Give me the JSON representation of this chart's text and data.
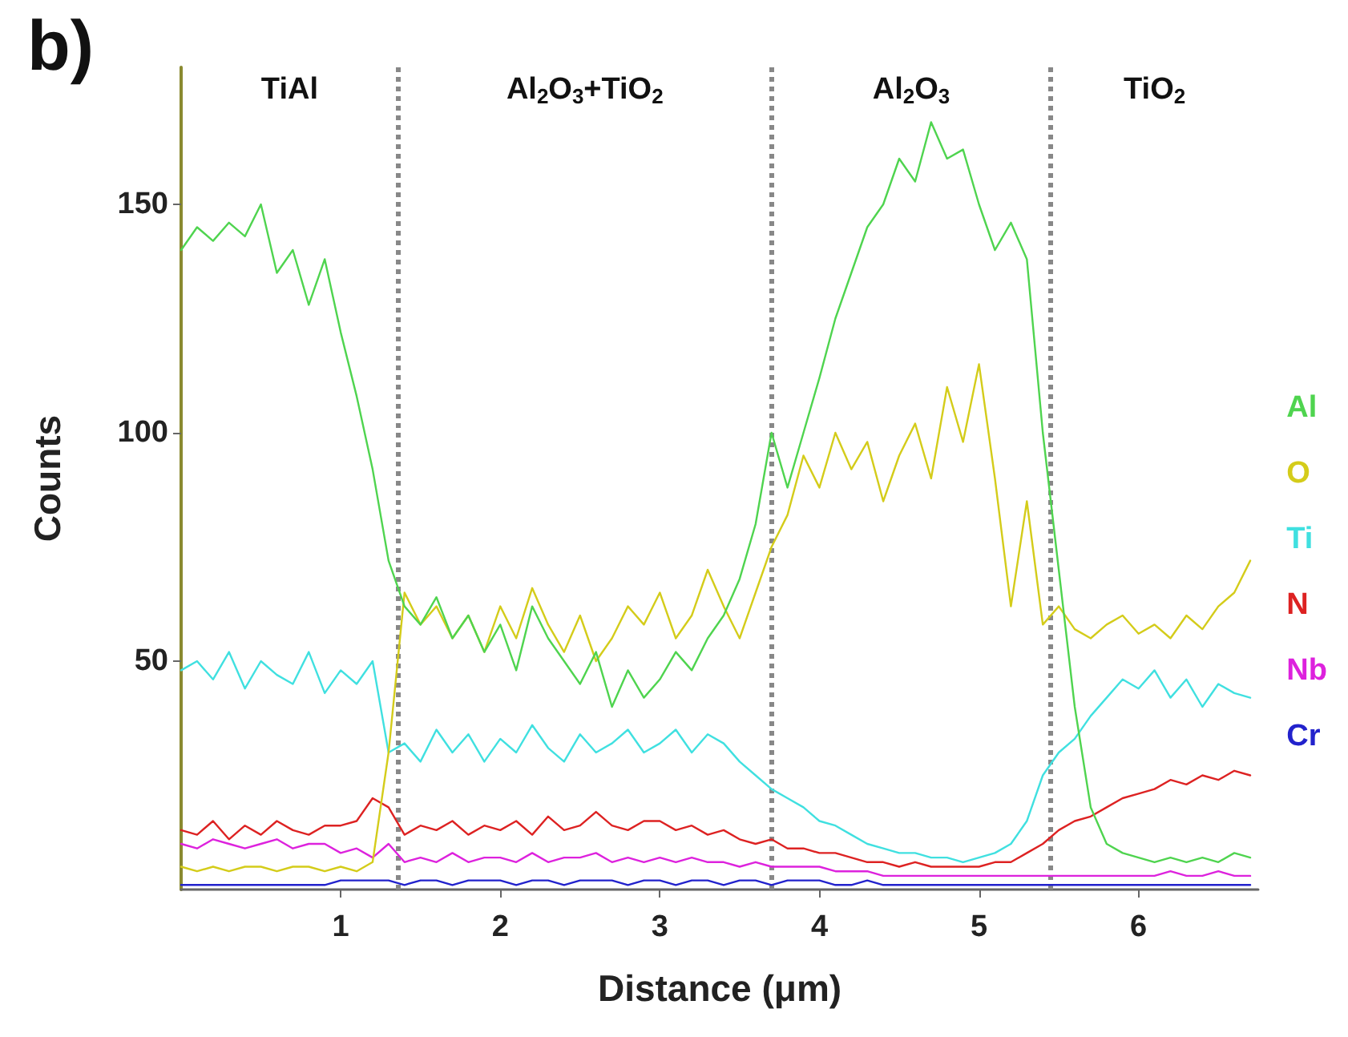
{
  "chart_data": {
    "type": "line",
    "title": "b)",
    "xlabel": "Distance (μm)",
    "ylabel": "Counts",
    "xlim": [
      0,
      6.75
    ],
    "xticks": [
      1,
      2,
      3,
      4,
      5,
      6
    ],
    "ylim": [
      0,
      180
    ],
    "yticks": [
      50,
      100,
      150
    ],
    "grid": false,
    "legend": "right",
    "marker": "none",
    "line_style": "solid",
    "x": [
      0.0,
      0.1,
      0.2,
      0.3,
      0.4,
      0.5,
      0.6,
      0.7,
      0.8,
      0.9,
      1.0,
      1.1,
      1.2,
      1.3,
      1.4,
      1.5,
      1.6,
      1.7,
      1.8,
      1.9,
      2.0,
      2.1,
      2.2,
      2.3,
      2.4,
      2.5,
      2.6,
      2.7,
      2.8,
      2.9,
      3.0,
      3.1,
      3.2,
      3.3,
      3.4,
      3.5,
      3.6,
      3.7,
      3.8,
      3.9,
      4.0,
      4.1,
      4.2,
      4.3,
      4.4,
      4.5,
      4.6,
      4.7,
      4.8,
      4.9,
      5.0,
      5.1,
      5.2,
      5.3,
      5.4,
      5.5,
      5.6,
      5.7,
      5.8,
      5.9,
      6.0,
      6.1,
      6.2,
      6.3,
      6.4,
      6.5,
      6.6,
      6.7
    ],
    "series": [
      {
        "name": "Al",
        "color": "#4fd44f",
        "values": [
          140,
          145,
          142,
          146,
          143,
          150,
          135,
          140,
          128,
          138,
          122,
          108,
          92,
          72,
          62,
          58,
          64,
          55,
          60,
          52,
          58,
          48,
          62,
          55,
          50,
          45,
          52,
          40,
          48,
          42,
          46,
          52,
          48,
          55,
          60,
          68,
          80,
          100,
          88,
          100,
          112,
          125,
          135,
          145,
          150,
          160,
          155,
          168,
          160,
          162,
          150,
          140,
          146,
          138,
          100,
          70,
          40,
          18,
          10,
          8,
          7,
          6,
          7,
          6,
          7,
          6,
          8,
          7
        ]
      },
      {
        "name": "O",
        "color": "#d4cc1a",
        "values": [
          5,
          4,
          5,
          4,
          5,
          5,
          4,
          5,
          5,
          4,
          5,
          4,
          6,
          30,
          65,
          58,
          62,
          55,
          60,
          52,
          62,
          55,
          66,
          58,
          52,
          60,
          50,
          55,
          62,
          58,
          65,
          55,
          60,
          70,
          62,
          55,
          65,
          75,
          82,
          95,
          88,
          100,
          92,
          98,
          85,
          95,
          102,
          90,
          110,
          98,
          115,
          90,
          62,
          85,
          58,
          62,
          57,
          55,
          58,
          60,
          56,
          58,
          55,
          60,
          57,
          62,
          65,
          72
        ]
      },
      {
        "name": "Ti",
        "color": "#40e0e0",
        "values": [
          48,
          50,
          46,
          52,
          44,
          50,
          47,
          45,
          52,
          43,
          48,
          45,
          50,
          30,
          32,
          28,
          35,
          30,
          34,
          28,
          33,
          30,
          36,
          31,
          28,
          34,
          30,
          32,
          35,
          30,
          32,
          35,
          30,
          34,
          32,
          28,
          25,
          22,
          20,
          18,
          15,
          14,
          12,
          10,
          9,
          8,
          8,
          7,
          7,
          6,
          7,
          8,
          10,
          15,
          25,
          30,
          33,
          38,
          42,
          46,
          44,
          48,
          42,
          46,
          40,
          45,
          43,
          42
        ]
      },
      {
        "name": "N",
        "color": "#dd2222",
        "values": [
          13,
          12,
          15,
          11,
          14,
          12,
          15,
          13,
          12,
          14,
          14,
          15,
          20,
          18,
          12,
          14,
          13,
          15,
          12,
          14,
          13,
          15,
          12,
          16,
          13,
          14,
          17,
          14,
          13,
          15,
          15,
          13,
          14,
          12,
          13,
          11,
          10,
          11,
          9,
          9,
          8,
          8,
          7,
          6,
          6,
          5,
          6,
          5,
          5,
          5,
          5,
          6,
          6,
          8,
          10,
          13,
          15,
          16,
          18,
          20,
          21,
          22,
          24,
          23,
          25,
          24,
          26,
          25
        ]
      },
      {
        "name": "Nb",
        "color": "#dd22dd",
        "values": [
          10,
          9,
          11,
          10,
          9,
          10,
          11,
          9,
          10,
          10,
          8,
          9,
          7,
          10,
          6,
          7,
          6,
          8,
          6,
          7,
          7,
          6,
          8,
          6,
          7,
          7,
          8,
          6,
          7,
          6,
          7,
          6,
          7,
          6,
          6,
          5,
          6,
          5,
          5,
          5,
          5,
          4,
          4,
          4,
          3,
          3,
          3,
          3,
          3,
          3,
          3,
          3,
          3,
          3,
          3,
          3,
          3,
          3,
          3,
          3,
          3,
          3,
          4,
          3,
          3,
          4,
          3,
          3
        ]
      },
      {
        "name": "Cr",
        "color": "#2222cc",
        "values": [
          1,
          1,
          1,
          1,
          1,
          1,
          1,
          1,
          1,
          1,
          2,
          2,
          2,
          2,
          1,
          2,
          2,
          1,
          2,
          2,
          2,
          1,
          2,
          2,
          1,
          2,
          2,
          2,
          1,
          2,
          2,
          1,
          2,
          2,
          1,
          2,
          2,
          1,
          2,
          2,
          2,
          1,
          1,
          2,
          1,
          1,
          1,
          1,
          1,
          1,
          1,
          1,
          1,
          1,
          1,
          1,
          1,
          1,
          1,
          1,
          1,
          1,
          1,
          1,
          1,
          1,
          1,
          1
        ]
      }
    ],
    "ref_lines": [
      {
        "axis": "x",
        "value": 1.36,
        "color": "#888888",
        "line_style": "dotted"
      },
      {
        "axis": "x",
        "value": 3.7,
        "color": "#888888",
        "line_style": "dotted"
      },
      {
        "axis": "x",
        "value": 5.45,
        "color": "#888888",
        "line_style": "dotted"
      }
    ],
    "annotations": [
      "TiAl",
      "Al$_{2}$O$_{3}$+TiO$_{2}$",
      "Al$_{2}$O$_{3}$",
      "TiO$_{2}$"
    ]
  }
}
